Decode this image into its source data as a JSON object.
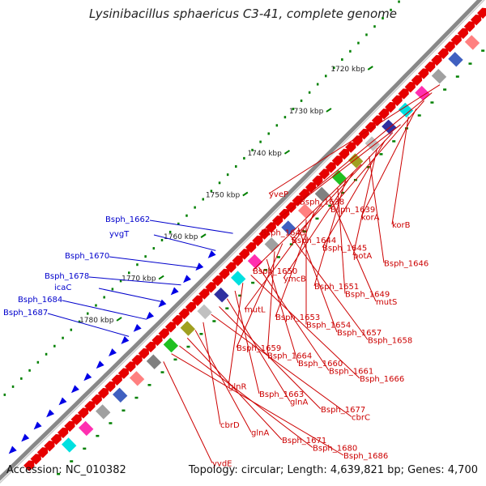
{
  "title": "Lysinibacillus sphaericus C3-41, complete genome",
  "footer": {
    "accession": "Accession: NC_010382",
    "topology": "Topology: circular; Length: 4,639,821 bp; Genes: 4,700"
  },
  "kbp_ticks": [
    {
      "label": "1720 kbp"
    },
    {
      "label": "1730 kbp"
    },
    {
      "label": "1740 kbp"
    },
    {
      "label": "1750 kbp"
    },
    {
      "label": "1760 kbp"
    },
    {
      "label": "1770 kbp"
    },
    {
      "label": "1780 kbp"
    }
  ],
  "labels_blue": [
    "Bsph_1662",
    "yvgT",
    "Bsph_1670",
    "Bsph_1678",
    "icaC",
    "Bsph_1684",
    "Bsph_1687"
  ],
  "labels_red": [
    "yveP",
    "Bsph_1638",
    "Bsph_1639",
    "korA",
    "korB",
    "Bsph_1643",
    "Bsph_1644",
    "Bsph_1645",
    "potA",
    "Bsph_1646",
    "Bsph_1650",
    "ymcB",
    "Bsph_1651",
    "Bsph_1649",
    "mutS",
    "mutL",
    "Bsph_1653",
    "Bsph_1654",
    "Bsph_1657",
    "Bsph_1658",
    "Bsph_1659",
    "Bsph_1664",
    "Bsph_1660",
    "Bsph_1661",
    "Bsph_1666",
    "glnR",
    "Bsph_1663",
    "glnA",
    "Bsph_1677",
    "cbrC",
    "cbrD",
    "glnA",
    "Bsph_1671",
    "Bsph_1680",
    "Bsph_1686",
    "yvdE"
  ],
  "colors": {
    "forward_gene": "#e60000",
    "reverse_gene": "#0000e6",
    "backbone": "#888888",
    "gc_dots": "#008000",
    "label_red": "#cc0000",
    "label_blue": "#0000cc"
  }
}
